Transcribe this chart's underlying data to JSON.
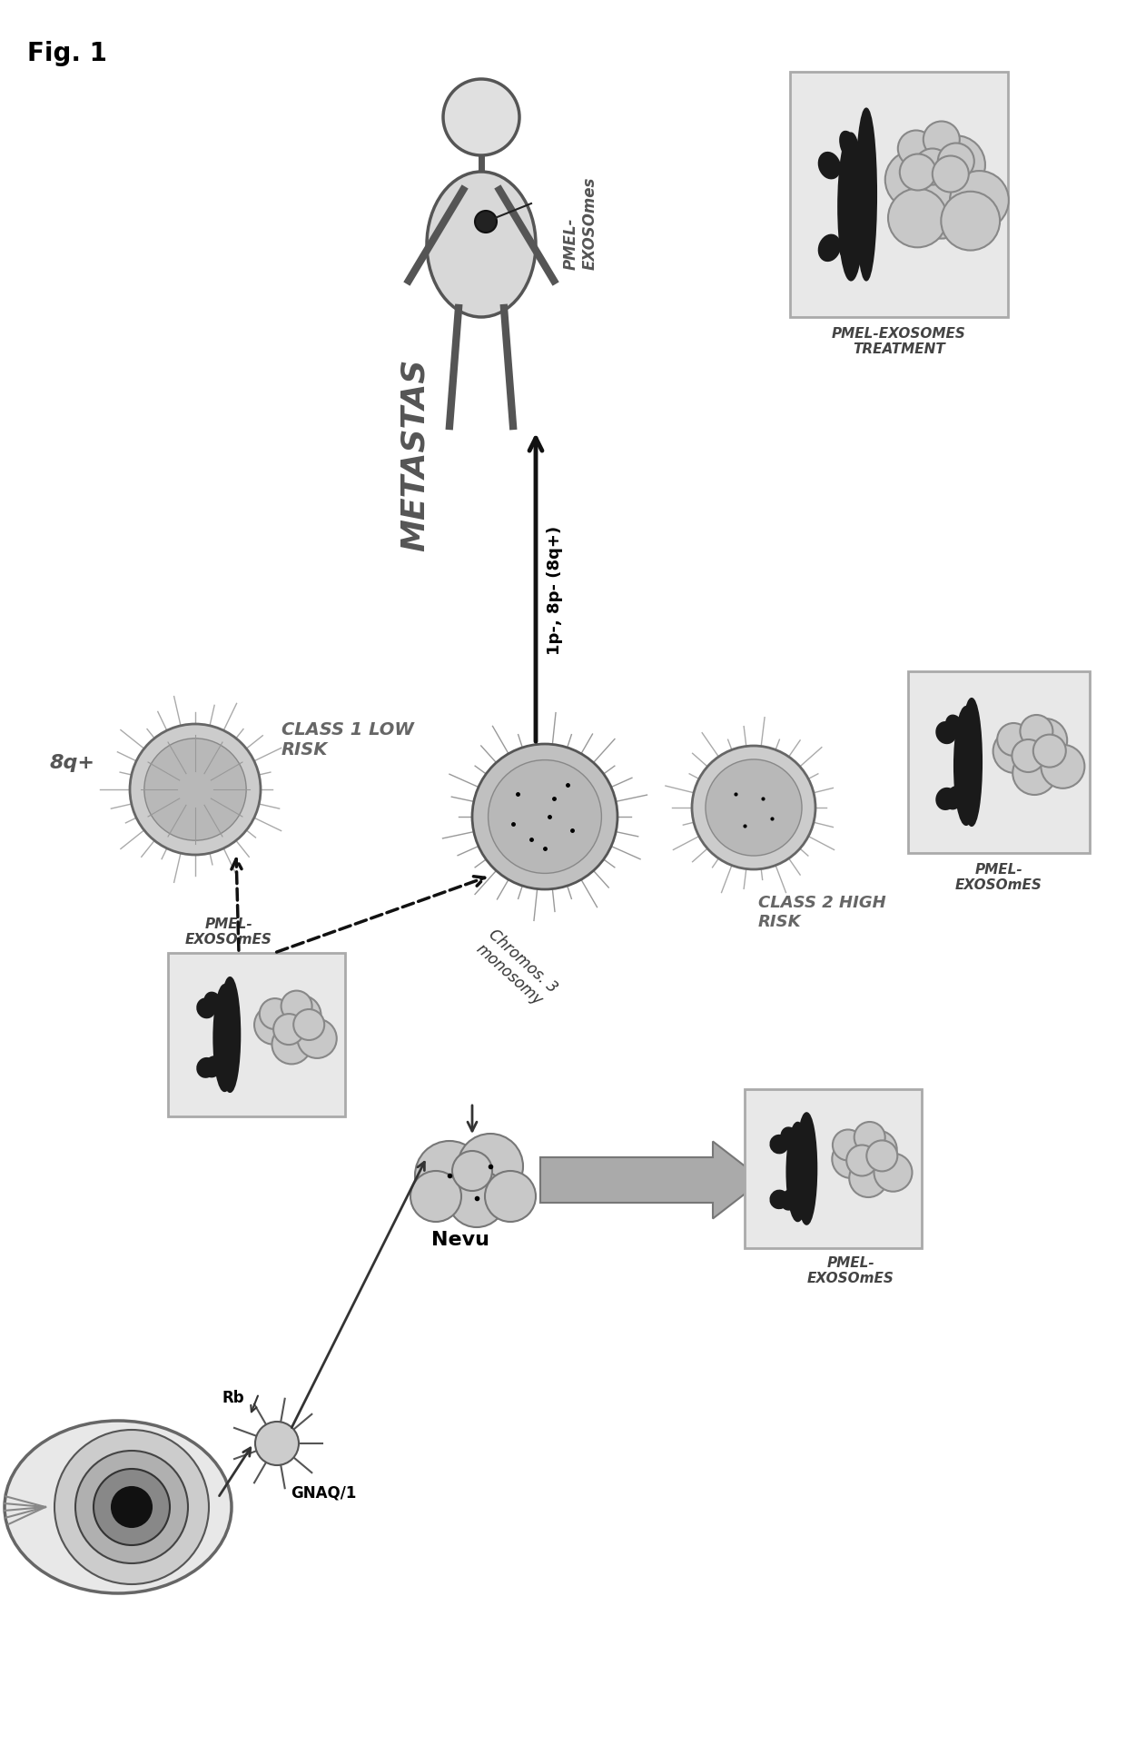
{
  "bg_color": "#ffffff",
  "fig1_label": "Fig. 1",
  "label_metastas": "METASTAS",
  "label_pmel_exo": "PMEL-\nEXOSOmes",
  "label_pmel_exo_treatment": "PMEL-EXOSOMES\nTREATMENT",
  "label_class1": "CLASS 1 LOW\nRISK",
  "label_class2": "CLASS 2 HIGH\nRISK",
  "label_chromos": "Chromos. 3\nmonosomy",
  "label_nevu": "Nevu",
  "label_rb": "Rb",
  "label_gnaq": "GNAQ/1",
  "label_8q": "8q+",
  "label_1p8p": "1p-, 8p- (8q+)"
}
